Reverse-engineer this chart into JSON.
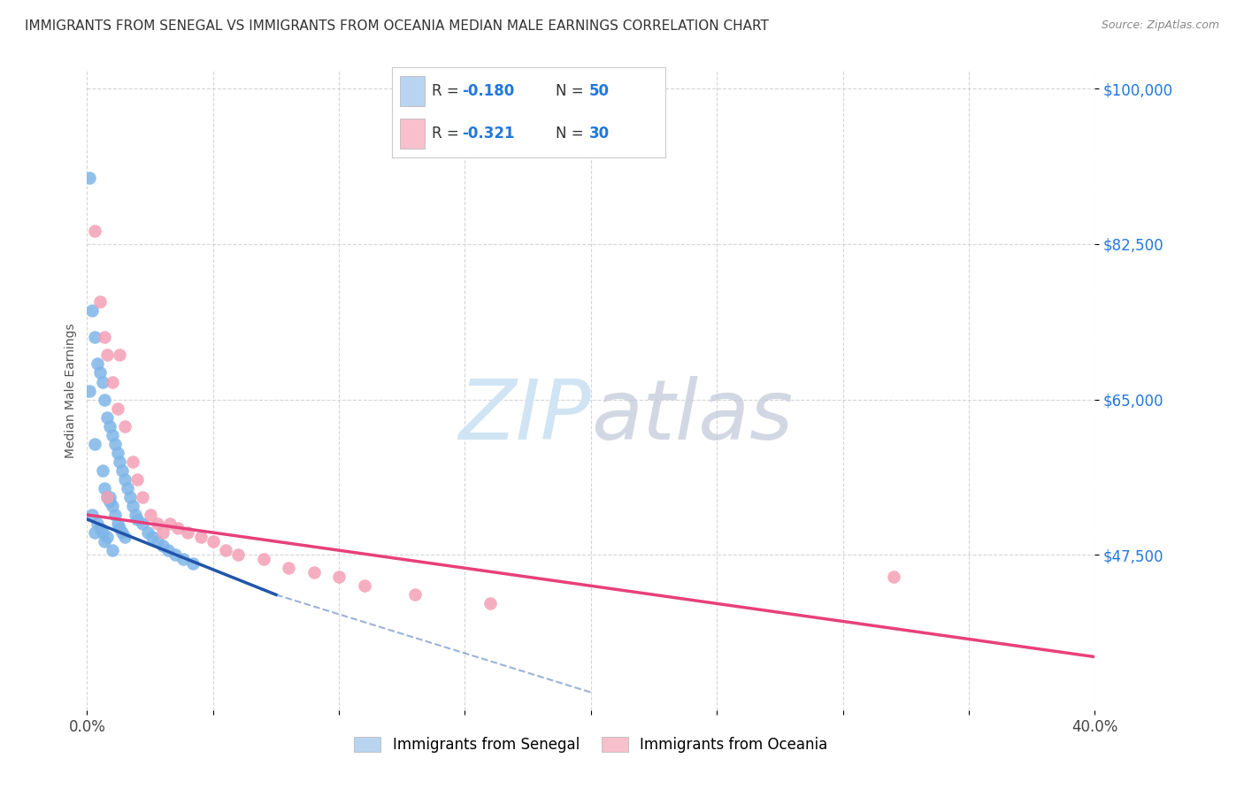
{
  "title": "IMMIGRANTS FROM SENEGAL VS IMMIGRANTS FROM OCEANIA MEDIAN MALE EARNINGS CORRELATION CHART",
  "source": "Source: ZipAtlas.com",
  "ylabel": "Median Male Earnings",
  "xlim": [
    0.0,
    0.4
  ],
  "ylim": [
    30000,
    102000
  ],
  "ytick_vals": [
    47500,
    65000,
    82500,
    100000
  ],
  "ytick_labels": [
    "$47,500",
    "$65,000",
    "$82,500",
    "$100,000"
  ],
  "xtick_vals": [
    0.0,
    0.05,
    0.1,
    0.15,
    0.2,
    0.25,
    0.3,
    0.35,
    0.4
  ],
  "xtick_labels": [
    "0.0%",
    "",
    "",
    "",
    "",
    "",
    "",
    "",
    "40.0%"
  ],
  "series1_label": "Immigrants from Senegal",
  "series2_label": "Immigrants from Oceania",
  "R1": -0.18,
  "N1": 50,
  "R2": -0.321,
  "N2": 30,
  "color1": "#7eb5e8",
  "color2": "#f4a0b5",
  "line_color1": "#2255aa",
  "line_color2": "#e8407a",
  "legend_color1": "#b8d4f0",
  "legend_color2": "#f8c0cc",
  "watermark_color": "#d0e4f4",
  "tick_label_color_y": "#2277dd",
  "tick_label_color_x": "#444444",
  "background_color": "#ffffff",
  "scatter1_x": [
    0.001,
    0.002,
    0.002,
    0.003,
    0.003,
    0.004,
    0.004,
    0.005,
    0.005,
    0.006,
    0.006,
    0.007,
    0.007,
    0.007,
    0.008,
    0.008,
    0.008,
    0.009,
    0.009,
    0.01,
    0.01,
    0.01,
    0.011,
    0.011,
    0.012,
    0.012,
    0.013,
    0.013,
    0.014,
    0.014,
    0.015,
    0.015,
    0.016,
    0.017,
    0.018,
    0.019,
    0.02,
    0.022,
    0.024,
    0.026,
    0.028,
    0.03,
    0.032,
    0.035,
    0.038,
    0.042,
    0.001,
    0.003,
    0.006,
    0.009
  ],
  "scatter1_y": [
    90000,
    75000,
    52000,
    72000,
    50000,
    69000,
    51000,
    68000,
    50500,
    67000,
    50000,
    65000,
    55000,
    49000,
    63000,
    54000,
    49500,
    62000,
    53500,
    61000,
    53000,
    48000,
    60000,
    52000,
    59000,
    51000,
    58000,
    50500,
    57000,
    50000,
    56000,
    49500,
    55000,
    54000,
    53000,
    52000,
    51500,
    51000,
    50000,
    49500,
    49000,
    48500,
    48000,
    47500,
    47000,
    46500,
    66000,
    60000,
    57000,
    54000
  ],
  "scatter2_x": [
    0.003,
    0.005,
    0.007,
    0.008,
    0.01,
    0.012,
    0.013,
    0.015,
    0.018,
    0.02,
    0.022,
    0.025,
    0.028,
    0.03,
    0.033,
    0.036,
    0.04,
    0.045,
    0.05,
    0.055,
    0.06,
    0.07,
    0.08,
    0.09,
    0.1,
    0.11,
    0.13,
    0.16,
    0.32,
    0.008
  ],
  "scatter2_y": [
    84000,
    76000,
    72000,
    70000,
    67000,
    64000,
    70000,
    62000,
    58000,
    56000,
    54000,
    52000,
    51000,
    50000,
    51000,
    50500,
    50000,
    49500,
    49000,
    48000,
    47500,
    47000,
    46000,
    45500,
    45000,
    44000,
    43000,
    42000,
    45000,
    54000
  ],
  "line1_x0": 0.0,
  "line1_y0": 51500,
  "line1_x1": 0.075,
  "line1_y1": 43000,
  "line1_dash_x1": 0.2,
  "line1_dash_y1": 32000,
  "line2_x0": 0.0,
  "line2_y0": 52000,
  "line2_x1": 0.4,
  "line2_y1": 36000
}
